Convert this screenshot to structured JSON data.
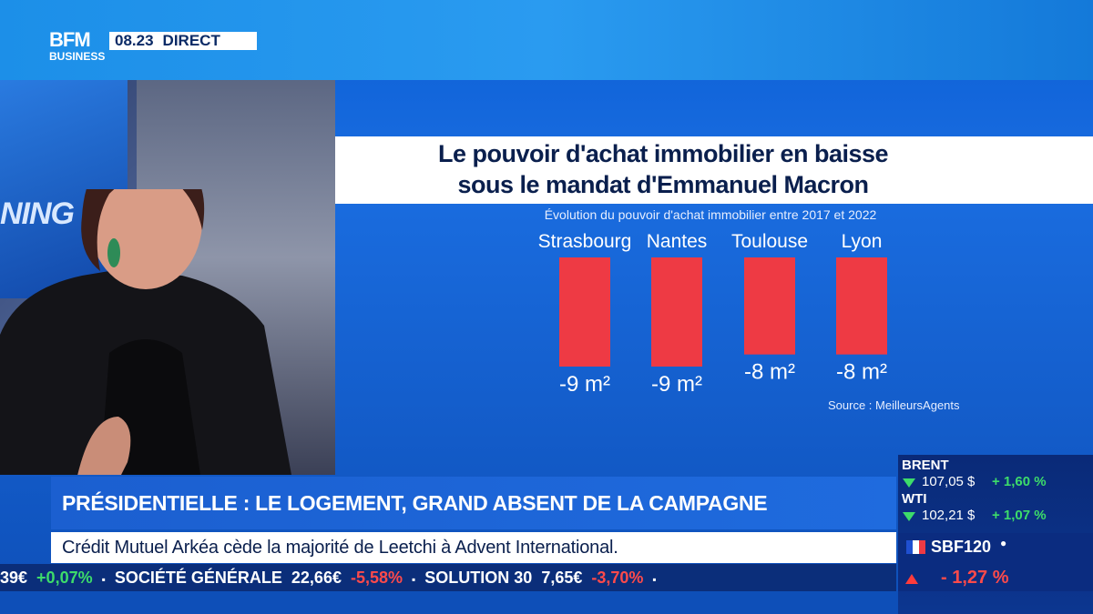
{
  "header": {
    "logo_top": "BFM",
    "logo_bottom": "BUSINESS",
    "time": "08.23",
    "live": "DIRECT"
  },
  "studio": {
    "screen_text": "NING"
  },
  "chart_data": {
    "type": "bar",
    "title_line1": "Le pouvoir d'achat immobilier en baisse",
    "title_line2": "sous le mandat d'Emmanuel Macron",
    "subtitle": "Évolution du pouvoir d'achat immobilier entre 2017 et 2022",
    "categories": [
      "Strasbourg",
      "Nantes",
      "Toulouse",
      "Lyon"
    ],
    "values": [
      -9,
      -9,
      -8,
      -8
    ],
    "labels": [
      "-9 m²",
      "-9 m²",
      "-8 m²",
      "-8 m²"
    ],
    "unit": "m²",
    "ylim": [
      -9,
      0
    ],
    "bar_color": "#ee3a44",
    "source": "Source : MeilleursAgents"
  },
  "headline": "PRÉSIDENTIELLE : LE LOGEMENT, GRAND ABSENT DE LA CAMPAGNE",
  "subline": "Crédit Mutuel Arkéa cède la majorité de Leetchi à Advent International.",
  "ticker": [
    {
      "text": "39€",
      "cls": ""
    },
    {
      "text": "+0,07%",
      "cls": "up"
    },
    {
      "text": "▪",
      "cls": "sep"
    },
    {
      "text": "SOCIÉTÉ GÉNÉRALE",
      "cls": ""
    },
    {
      "text": "22,66€",
      "cls": ""
    },
    {
      "text": "-5,58%",
      "cls": "down"
    },
    {
      "text": "▪",
      "cls": "sep"
    },
    {
      "text": "SOLUTION 30",
      "cls": ""
    },
    {
      "text": "7,65€",
      "cls": ""
    },
    {
      "text": "-3,70%",
      "cls": "down"
    },
    {
      "text": "▪",
      "cls": "sep"
    }
  ],
  "markets": {
    "brent": {
      "name": "BRENT",
      "value": "107,05 $",
      "change": "+ 1,60 %"
    },
    "wti": {
      "name": "WTI",
      "value": "102,21 $",
      "change": "+ 1,07 %"
    },
    "sbf": {
      "name": "SBF120",
      "change": "- 1,27 %"
    }
  },
  "colors": {
    "up": "#3ddc6a",
    "down": "#ff4a4a"
  }
}
